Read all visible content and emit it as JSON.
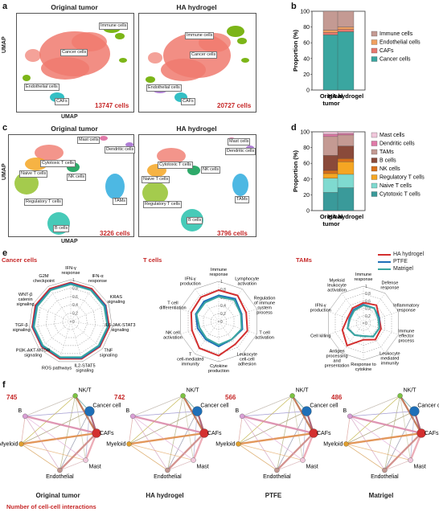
{
  "letters": {
    "a": "a",
    "b": "b",
    "c": "c",
    "d": "d",
    "e": "e",
    "f": "f"
  },
  "panel_a": {
    "left_title": "Original tumor",
    "right_title": "HA hydrogel",
    "ylabel": "UMAP",
    "xlabel": "UMAP",
    "left_count": "13747 cells",
    "right_count": "20727 cells",
    "labels": {
      "immune": "Immune cells",
      "cancer": "Cancer cells",
      "endothelial": "Endothelial cells",
      "cafs": "CAFs"
    }
  },
  "panel_c": {
    "left_title": "Original tumor",
    "right_title": "HA hydrogel",
    "ylabel": "UMAP",
    "xlabel": "UMAP",
    "left_count": "3226 cells",
    "right_count": "3796 cells",
    "labels": {
      "mast": "Mast cells",
      "dendritic": "Dendritic cells",
      "cytotoxic": "Cytotoxic T cells",
      "naive": "Naive T cells",
      "nk": "NK cells",
      "regulatory": "Regulatory T cells",
      "tams": "TAMs",
      "b": "B cells"
    }
  },
  "chart_data": [
    {
      "type": "bar",
      "stacked": true,
      "panel": "b",
      "categories": [
        "Original tumor",
        "HA hydrogel"
      ],
      "ylabel": "Proportion (%)",
      "ylim": [
        0,
        100
      ],
      "yticks": [
        "0",
        "20",
        "40",
        "60",
        "80",
        "100"
      ],
      "series": [
        {
          "name": "Cancer cells",
          "color": "#3aa6a0",
          "values": [
            70,
            74
          ]
        },
        {
          "name": "CAFs",
          "color": "#e8786e",
          "values": [
            3,
            3
          ]
        },
        {
          "name": "Endothelial cells",
          "color": "#f0a060",
          "values": [
            3,
            3
          ]
        },
        {
          "name": "Immune cells",
          "color": "#c49a93",
          "values": [
            24,
            20
          ]
        }
      ]
    },
    {
      "type": "bar",
      "stacked": true,
      "panel": "d",
      "categories": [
        "Original tumor",
        "HA hydrogel"
      ],
      "ylabel": "Proportion (%)",
      "ylim": [
        0,
        100
      ],
      "yticks": [
        "0",
        "20",
        "40",
        "60",
        "80",
        "100"
      ],
      "series": [
        {
          "name": "Cytotoxic T cells",
          "color": "#3a9a9a",
          "values": [
            23,
            29
          ]
        },
        {
          "name": "Naive T cells",
          "color": "#7fdad0",
          "values": [
            18,
            17
          ]
        },
        {
          "name": "Regulatory T cells",
          "color": "#f5a623",
          "values": [
            6,
            16
          ]
        },
        {
          "name": "NK cells",
          "color": "#d9701a",
          "values": [
            4,
            4
          ]
        },
        {
          "name": "B cells",
          "color": "#8a4a3a",
          "values": [
            19,
            16
          ]
        },
        {
          "name": "TAMs",
          "color": "#c49a93",
          "values": [
            24,
            14
          ]
        },
        {
          "name": "Dendritic cells",
          "color": "#e07aa8",
          "values": [
            3,
            2
          ]
        },
        {
          "name": "Mast cells",
          "color": "#f1c8dc",
          "values": [
            3,
            2
          ]
        }
      ]
    },
    {
      "type": "radar",
      "panel": "e",
      "title": "Cancer cells",
      "axes": [
        "IFN-γ response",
        "IFN-α response",
        "KRAS signaling",
        "IL6-JAK-STAT3 signaling",
        "TNF signaling",
        "IL2-STAT5 signaling",
        "ROS pathways",
        "PI3K-AKT-MTOR signaling",
        "TGF-β signaling",
        "WNT-β catenin signaling",
        "G2M checkpoint"
      ],
      "scale": [
        "0",
        "0.2",
        "0.4",
        "0.6",
        "0.8",
        "1"
      ],
      "series": [
        {
          "name": "HA hydrogel",
          "color": "#d32f2f",
          "values": [
            0.93,
            0.93,
            0.92,
            0.93,
            0.92,
            0.93,
            0.93,
            0.92,
            0.93,
            0.93,
            0.93
          ]
        },
        {
          "name": "PTFE",
          "color": "#1e6fb8",
          "values": [
            0.91,
            0.9,
            0.91,
            0.9,
            0.9,
            0.91,
            0.9,
            0.9,
            0.91,
            0.9,
            0.9
          ]
        },
        {
          "name": "Matrigel",
          "color": "#3aa6a0",
          "values": [
            0.89,
            0.89,
            0.88,
            0.89,
            0.88,
            0.89,
            0.89,
            0.88,
            0.89,
            0.88,
            0.89
          ]
        }
      ]
    },
    {
      "type": "radar",
      "panel": "e",
      "title": "T cells",
      "axes": [
        "Immune response",
        "Lymphocyte activation",
        "Regulation of immune system process",
        "T cell activation",
        "Leukocyte cell-cell adhesion",
        "Cytokine production",
        "T cell-mediated immunity",
        "NK cell activation",
        "T cell differentiation",
        "IFN-γ production"
      ],
      "scale": [
        "0",
        "0.2",
        "0.4",
        "0.6",
        "0.8",
        "1"
      ],
      "series": [
        {
          "name": "HA hydrogel",
          "color": "#d32f2f",
          "values": [
            0.78,
            0.8,
            0.72,
            0.75,
            0.7,
            0.85,
            0.82,
            0.7,
            0.72,
            0.75
          ]
        },
        {
          "name": "PTFE",
          "color": "#1e6fb8",
          "values": [
            0.65,
            0.7,
            0.6,
            0.62,
            0.55,
            0.62,
            0.55,
            0.55,
            0.6,
            0.62
          ]
        },
        {
          "name": "Matrigel",
          "color": "#3aa6a0",
          "values": [
            0.62,
            0.66,
            0.58,
            0.6,
            0.55,
            0.58,
            0.52,
            0.5,
            0.58,
            0.58
          ]
        }
      ]
    },
    {
      "type": "radar",
      "panel": "e",
      "title": "TAMs",
      "axes": [
        "Immune response",
        "Defense response",
        "Inflammatory response",
        "Immune effector process",
        "Leukocyte mediated immunity",
        "Response to cytokine",
        "Antigen processing and presentation",
        "Cell killing",
        "IFN-γ production",
        "Myeloid leukocyte activation"
      ],
      "scale": [
        "0",
        "0.2",
        "0.4",
        "0.6",
        "0.8",
        "1"
      ],
      "series": [
        {
          "name": "HA hydrogel",
          "color": "#d32f2f",
          "values": [
            0.55,
            0.6,
            0.45,
            0.5,
            0.55,
            0.45,
            0.75,
            0.6,
            0.45,
            0.5
          ]
        },
        {
          "name": "PTFE",
          "color": "#1e6fb8",
          "values": [
            0.5,
            0.5,
            0.45,
            0.45,
            0.45,
            0.35,
            0.4,
            0.45,
            0.4,
            0.45
          ]
        },
        {
          "name": "Matrigel",
          "color": "#3aa6a0",
          "values": [
            0.48,
            0.5,
            0.42,
            0.45,
            0.45,
            0.35,
            0.4,
            0.45,
            0.38,
            0.42
          ]
        }
      ]
    }
  ],
  "radar_titles": {
    "cancer": "Cancer cells",
    "t": "T cells",
    "tams": "TAMs"
  },
  "legend_e": [
    {
      "name": "HA hydrogel",
      "color": "#d32f2f"
    },
    {
      "name": "PTFE",
      "color": "#1e6fb8"
    },
    {
      "name": "Matrigel",
      "color": "#3aa6a0"
    }
  ],
  "panel_f": {
    "networks": [
      {
        "title": "Original tumor",
        "count": "745"
      },
      {
        "title": "HA hydrogel",
        "count": "742"
      },
      {
        "title": "PTFE",
        "count": "566"
      },
      {
        "title": "Matrigel",
        "count": "486"
      }
    ],
    "nodes": [
      {
        "name": "NK/T",
        "color": "#7cc242"
      },
      {
        "name": "Cancer cell",
        "color": "#1e6fb8"
      },
      {
        "name": "CAFs",
        "color": "#d32f2f"
      },
      {
        "name": "Mast",
        "color": "#f1c8dc"
      },
      {
        "name": "Endothelial",
        "color": "#c49a93"
      },
      {
        "name": "Myeloid",
        "color": "#e0a030"
      },
      {
        "name": "B",
        "color": "#d99fd6"
      }
    ],
    "footer": "Number of cell-cell interactions"
  }
}
